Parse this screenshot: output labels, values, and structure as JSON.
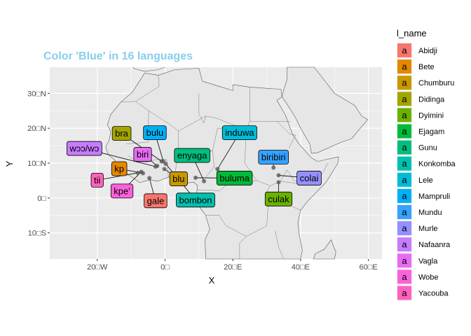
{
  "chart_data": {
    "type": "scatter",
    "title": "Color 'Blue' in 16 languages",
    "xlabel": "X",
    "ylabel": "Y",
    "xlim": [
      -34,
      64
    ],
    "ylim": [
      -17.5,
      37.5
    ],
    "x_ticks": [
      {
        "value": -20,
        "label": "20□W"
      },
      {
        "value": 0,
        "label": "0□"
      },
      {
        "value": 20,
        "label": "20□E"
      },
      {
        "value": 40,
        "label": "40□E"
      },
      {
        "value": 60,
        "label": "60□E"
      }
    ],
    "y_ticks": [
      {
        "value": -10,
        "label": "10□S"
      },
      {
        "value": 0,
        "label": "0□"
      },
      {
        "value": 10,
        "label": "10□N"
      },
      {
        "value": 20,
        "label": "20□N"
      },
      {
        "value": 30,
        "label": "30□N"
      }
    ],
    "grid": true,
    "legend": {
      "title": "l_name",
      "position": "right"
    },
    "series": [
      {
        "name": "Abidji",
        "color": "#F8766D",
        "label": "gale",
        "x": -4.6,
        "y": 5.7,
        "lx": -2.8,
        "ly": -0.8
      },
      {
        "name": "Bete",
        "color": "#E58700",
        "label": "kp",
        "x": -6.5,
        "y": 7.1,
        "lx": -13.5,
        "ly": 8.4
      },
      {
        "name": "Chumburu",
        "color": "#C99800",
        "label": "blu",
        "x": -0.2,
        "y": 8.3,
        "lx": 4.0,
        "ly": 5.5
      },
      {
        "name": "Didinga",
        "color": "#A3A500",
        "label": "bra",
        "x": -1.0,
        "y": 10.5,
        "lx": -12.8,
        "ly": 18.5
      },
      {
        "name": "Dyimini",
        "color": "#6BB100",
        "label": "culаk",
        "x": 33.5,
        "y": 4.5,
        "lx": 33.5,
        "ly": -0.3
      },
      {
        "name": "Ejagam",
        "color": "#00BA38",
        "label": "buluma",
        "x": 9.0,
        "y": 5.8,
        "lx": 20.5,
        "ly": 5.7
      },
      {
        "name": "Gunu",
        "color": "#00BF7D",
        "label": "enyaga",
        "x": 11.5,
        "y": 4.8,
        "lx": 8.0,
        "ly": 12.2
      },
      {
        "name": "Konkomba",
        "color": "#00C0AF",
        "label": "bombon",
        "x": 0.2,
        "y": 9.8,
        "lx": 9.0,
        "ly": -0.6
      },
      {
        "name": "Lele",
        "color": "#00BCD8",
        "label": "induwa",
        "x": 15.5,
        "y": 8.3,
        "lx": 22.0,
        "ly": 18.7
      },
      {
        "name": "Mampruli",
        "color": "#00B0F6",
        "label": "bulu",
        "x": -0.5,
        "y": 10.5,
        "lx": -3.0,
        "ly": 18.7
      },
      {
        "name": "Mundu",
        "color": "#35A2FF",
        "label": "biribiri",
        "x": 32.0,
        "y": 8.7,
        "lx": 32.0,
        "ly": 11.7
      },
      {
        "name": "Murle",
        "color": "#9590FF",
        "label": "colai",
        "x": 33.5,
        "y": 6.5,
        "lx": 42.5,
        "ly": 5.7
      },
      {
        "name": "Nafaanra",
        "color": "#C77CFF",
        "label": "wɔɔ/wɔ",
        "x": -2.8,
        "y": 9.0,
        "lx": -23.8,
        "ly": 14.2
      },
      {
        "name": "Vagla",
        "color": "#E76BF3",
        "label": "biri",
        "x": -2.3,
        "y": 9.2,
        "lx": -6.6,
        "ly": 12.5
      },
      {
        "name": "Wobe",
        "color": "#FA62DB",
        "label": "kpe'",
        "x": -7.0,
        "y": 7.5,
        "lx": -12.7,
        "ly": 2.0
      },
      {
        "name": "Yacouba",
        "color": "#FF62BC",
        "label": "tii",
        "x": -8.0,
        "y": 7.2,
        "lx": -20.0,
        "ly": 5.1
      }
    ]
  }
}
